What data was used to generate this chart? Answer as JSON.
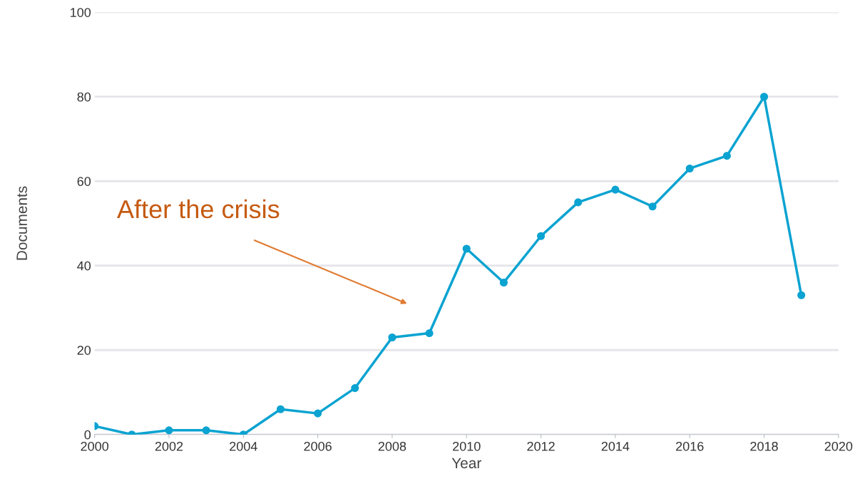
{
  "chart_data": {
    "type": "line",
    "xlabel": "Year",
    "ylabel": "Documents",
    "x": [
      2000,
      2001,
      2002,
      2003,
      2004,
      2005,
      2006,
      2007,
      2008,
      2009,
      2010,
      2011,
      2012,
      2013,
      2014,
      2015,
      2016,
      2017,
      2018,
      2019
    ],
    "series": [
      {
        "color": "#0ba3d1",
        "values": [
          2,
          0,
          1,
          1,
          0,
          6,
          5,
          11,
          23,
          24,
          44,
          36,
          47,
          55,
          58,
          54,
          63,
          66,
          80,
          33
        ]
      }
    ],
    "xlim": [
      2000,
      2020
    ],
    "xticks": [
      2000,
      2002,
      2004,
      2006,
      2008,
      2010,
      2012,
      2014,
      2016,
      2018,
      2020
    ],
    "ylim": [
      0,
      100
    ],
    "yticks": [
      0,
      20,
      40,
      60,
      80,
      100
    ],
    "grid": "y",
    "marker": "circle",
    "line_style": "solid",
    "annotations": [
      "After the crisis"
    ]
  }
}
